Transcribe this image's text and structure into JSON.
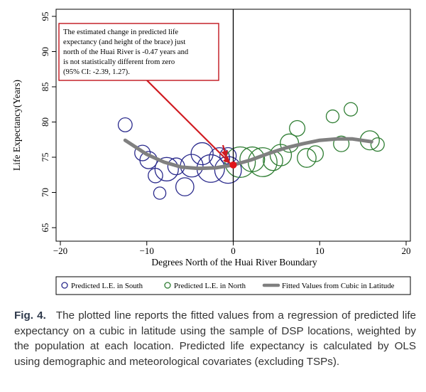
{
  "chart_data": {
    "type": "scatter",
    "title": "",
    "xlabel": "Degrees North of the Huai River Boundary",
    "ylabel": "Life Expectancy(Years)",
    "xlim": [
      -20,
      20
    ],
    "ylim": [
      65,
      95
    ],
    "xticks": [
      -20,
      -10,
      0,
      10,
      20
    ],
    "yticks": [
      65,
      70,
      75,
      80,
      85,
      90,
      95
    ],
    "x_tick_labels": [
      "−20",
      "−10",
      "0",
      "10",
      "20"
    ],
    "y_tick_labels": [
      "65",
      "70",
      "75",
      "80",
      "85",
      "90",
      "95"
    ],
    "boundary_x": 0,
    "series": [
      {
        "name": "Predicted L.E. in South",
        "color": "#2a2a8c",
        "points": [
          {
            "x": -12.5,
            "y": 79.6,
            "pop": 0.9
          },
          {
            "x": -10.5,
            "y": 75.6,
            "pop": 1.2
          },
          {
            "x": -9.8,
            "y": 74.6,
            "pop": 1.6
          },
          {
            "x": -9.0,
            "y": 72.4,
            "pop": 1.0
          },
          {
            "x": -8.5,
            "y": 69.9,
            "pop": 0.6
          },
          {
            "x": -7.7,
            "y": 73.3,
            "pop": 3.5
          },
          {
            "x": -6.6,
            "y": 73.7,
            "pop": 1.5
          },
          {
            "x": -5.6,
            "y": 70.8,
            "pop": 1.8
          },
          {
            "x": -4.8,
            "y": 73.8,
            "pop": 3.2
          },
          {
            "x": -3.6,
            "y": 75.5,
            "pop": 3.0
          },
          {
            "x": -2.6,
            "y": 73.4,
            "pop": 5.2
          },
          {
            "x": -1.6,
            "y": 74.9,
            "pop": 2.5
          },
          {
            "x": -0.6,
            "y": 73.2,
            "pop": 4.8
          },
          {
            "x": -0.6,
            "y": 75.2,
            "pop": 1.4
          }
        ]
      },
      {
        "name": "Predicted L.E. in North",
        "color": "#2e7d32",
        "points": [
          {
            "x": 0.8,
            "y": 74.3,
            "pop": 6.5
          },
          {
            "x": 2.2,
            "y": 74.7,
            "pop": 4.0
          },
          {
            "x": 3.4,
            "y": 74.3,
            "pop": 5.8
          },
          {
            "x": 4.6,
            "y": 74.5,
            "pop": 2.2
          },
          {
            "x": 5.5,
            "y": 75.3,
            "pop": 2.8
          },
          {
            "x": 6.5,
            "y": 77.0,
            "pop": 1.9
          },
          {
            "x": 7.4,
            "y": 79.1,
            "pop": 1.2
          },
          {
            "x": 8.5,
            "y": 74.9,
            "pop": 2.0
          },
          {
            "x": 9.5,
            "y": 75.5,
            "pop": 1.3
          },
          {
            "x": 11.5,
            "y": 80.8,
            "pop": 0.7
          },
          {
            "x": 12.5,
            "y": 76.9,
            "pop": 1.2
          },
          {
            "x": 13.6,
            "y": 81.8,
            "pop": 0.8
          },
          {
            "x": 15.8,
            "y": 77.4,
            "pop": 2.1
          },
          {
            "x": 16.7,
            "y": 76.8,
            "pop": 0.8
          }
        ]
      },
      {
        "name": "Fitted Values from Cubic in Latitude",
        "type": "line",
        "color": "#808080",
        "x": [
          -12.5,
          -10,
          -8,
          -6,
          -4,
          -2,
          0,
          2,
          4,
          6,
          8,
          10,
          12,
          13.8,
          16
        ],
        "values": [
          77.4,
          75.4,
          74.3,
          73.6,
          73.4,
          73.5,
          73.9,
          74.6,
          75.5,
          76.3,
          76.9,
          77.4,
          77.6,
          77.6,
          77.2
        ]
      }
    ],
    "highlight_point": {
      "x": 0,
      "y": 73.9,
      "color": "#e0141a"
    },
    "annotation": {
      "text": "The estimated change in predicted life expectancy (and height of the brace) just north of the Huai River is -0.47 years and is not statistically different from zero (95% CI: -2.39, 1.27).",
      "lines": [
        "The estimated change in predicted life",
        "expectancy (and height of the brace) just",
        "north of the Huai River is -0.47 years and",
        "is not statistically different from zero",
        "(95% CI: -2.39, 1.27)."
      ],
      "border_color": "#c0141c",
      "arrow_color": "#d01a20"
    },
    "legend": {
      "position": "bottom",
      "items": [
        {
          "label": "Predicted L.E. in South",
          "marker": "circle",
          "color": "#2a2a8c"
        },
        {
          "label": "Predicted L.E. in North",
          "marker": "circle",
          "color": "#2e7d32"
        },
        {
          "label": "Fitted Values from Cubic in Latitude",
          "marker": "line",
          "color": "#808080"
        }
      ]
    }
  },
  "caption": {
    "label": "Fig. 4.",
    "text": "The plotted line reports the fitted values from a regression of predicted life expectancy on a cubic in latitude using the sample of DSP locations, weighted by the population at each location. Predicted life expectancy is calculated by OLS using demographic and meteorological covariates (excluding TSPs)."
  }
}
